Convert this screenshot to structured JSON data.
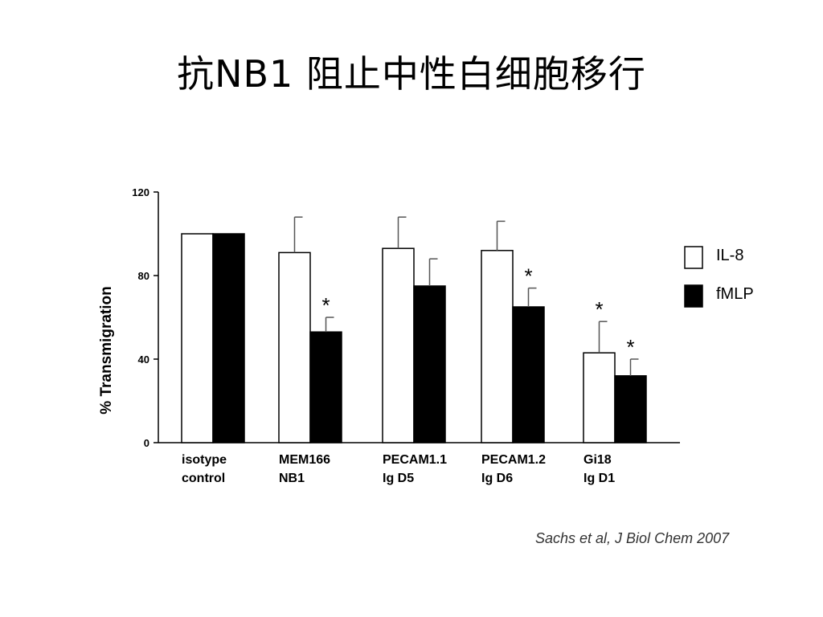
{
  "slide": {
    "title": "抗NB1 阻止中性白细胞移行",
    "citation": "Sachs et al, J Biol Chem 2007"
  },
  "chart_data": {
    "type": "bar",
    "ylabel": "% Transmigration",
    "ylim": [
      0,
      120
    ],
    "yticks": [
      0,
      40,
      80,
      120
    ],
    "categories": [
      [
        "isotype",
        "control"
      ],
      [
        "MEM166",
        "NB1"
      ],
      [
        "PECAM1.1",
        "Ig D5"
      ],
      [
        "PECAM1.2",
        "Ig D6"
      ],
      [
        "Gi18",
        "Ig D1"
      ]
    ],
    "series": [
      {
        "name": "IL-8",
        "fill": "#ffffff",
        "values": [
          100,
          91,
          93,
          92,
          43
        ],
        "errors": [
          null,
          17,
          15,
          14,
          15
        ],
        "significant": [
          false,
          false,
          false,
          false,
          true
        ]
      },
      {
        "name": "fMLP",
        "fill": "#000000",
        "values": [
          100,
          53,
          75,
          65,
          32
        ],
        "errors": [
          null,
          7,
          13,
          9,
          8
        ],
        "significant": [
          false,
          true,
          false,
          true,
          true
        ]
      }
    ],
    "significance_marker": "*",
    "legend_position": "right"
  }
}
